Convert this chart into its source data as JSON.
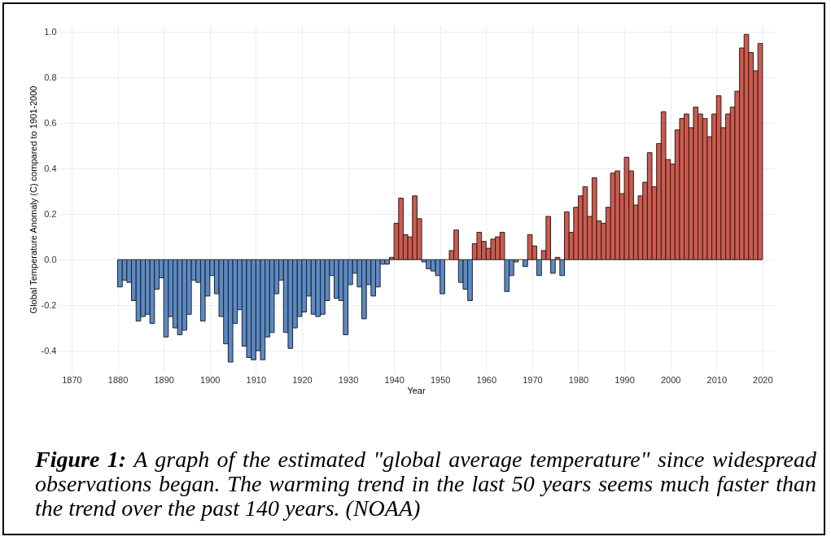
{
  "chart_data": {
    "type": "bar",
    "xlabel": "Year",
    "ylabel": "Global Temperature Anomaly (C) compared to 1901-2000",
    "x": [
      1880,
      1881,
      1882,
      1883,
      1884,
      1885,
      1886,
      1887,
      1888,
      1889,
      1890,
      1891,
      1892,
      1893,
      1894,
      1895,
      1896,
      1897,
      1898,
      1899,
      1900,
      1901,
      1902,
      1903,
      1904,
      1905,
      1906,
      1907,
      1908,
      1909,
      1910,
      1911,
      1912,
      1913,
      1914,
      1915,
      1916,
      1917,
      1918,
      1919,
      1920,
      1921,
      1922,
      1923,
      1924,
      1925,
      1926,
      1927,
      1928,
      1929,
      1930,
      1931,
      1932,
      1933,
      1934,
      1935,
      1936,
      1937,
      1938,
      1939,
      1940,
      1941,
      1942,
      1943,
      1944,
      1945,
      1946,
      1947,
      1948,
      1949,
      1950,
      1951,
      1952,
      1953,
      1954,
      1955,
      1956,
      1957,
      1958,
      1959,
      1960,
      1961,
      1962,
      1963,
      1964,
      1965,
      1966,
      1967,
      1968,
      1969,
      1970,
      1971,
      1972,
      1973,
      1974,
      1975,
      1976,
      1977,
      1978,
      1979,
      1980,
      1981,
      1982,
      1983,
      1984,
      1985,
      1986,
      1987,
      1988,
      1989,
      1990,
      1991,
      1992,
      1993,
      1994,
      1995,
      1996,
      1997,
      1998,
      1999,
      2000,
      2001,
      2002,
      2003,
      2004,
      2005,
      2006,
      2007,
      2008,
      2009,
      2010,
      2011,
      2012,
      2013,
      2014,
      2015,
      2016,
      2017,
      2018,
      2019
    ],
    "series": [
      {
        "color": "#d0594c",
        "values": [
          null,
          null,
          null,
          null,
          null,
          null,
          null,
          null,
          null,
          null,
          null,
          null,
          null,
          null,
          null,
          null,
          null,
          null,
          null,
          null,
          null,
          null,
          null,
          null,
          null,
          null,
          null,
          null,
          null,
          null,
          null,
          null,
          null,
          null,
          null,
          null,
          null,
          null,
          null,
          null,
          null,
          null,
          null,
          null,
          null,
          null,
          null,
          null,
          null,
          null,
          null,
          null,
          null,
          null,
          null,
          null,
          null,
          null,
          null,
          0.01,
          0.16,
          0.27,
          0.11,
          0.1,
          0.28,
          0.18,
          null,
          null,
          null,
          null,
          null,
          0.0,
          0.04,
          0.13,
          null,
          null,
          null,
          0.07,
          0.12,
          0.08,
          0.05,
          0.09,
          0.1,
          0.12,
          null,
          null,
          null,
          0.0,
          null,
          0.11,
          0.06,
          null,
          0.04,
          0.19,
          null,
          0.01,
          null,
          0.21,
          0.12,
          0.23,
          0.28,
          0.32,
          0.19,
          0.36,
          0.17,
          0.16,
          0.23,
          0.38,
          0.39,
          0.29,
          0.45,
          0.39,
          0.24,
          0.28,
          0.34,
          0.47,
          0.32,
          0.51,
          0.65,
          0.44,
          0.42,
          0.57,
          0.62,
          0.64,
          0.58,
          0.67,
          0.64,
          0.62,
          0.54,
          0.64,
          0.72,
          0.58,
          0.64,
          0.67,
          0.74,
          0.93,
          0.99,
          0.91,
          0.83,
          0.95
        ]
      },
      {
        "color": "#5a8ac6",
        "values": [
          -0.12,
          -0.09,
          -0.1,
          -0.18,
          -0.27,
          -0.25,
          -0.24,
          -0.28,
          -0.13,
          -0.08,
          -0.34,
          -0.25,
          -0.3,
          -0.33,
          -0.31,
          -0.24,
          -0.09,
          -0.1,
          -0.27,
          -0.16,
          -0.07,
          -0.15,
          -0.25,
          -0.37,
          -0.45,
          -0.28,
          -0.22,
          -0.38,
          -0.43,
          -0.44,
          -0.4,
          -0.44,
          -0.34,
          -0.32,
          -0.15,
          -0.09,
          -0.32,
          -0.39,
          -0.3,
          -0.25,
          -0.23,
          -0.16,
          -0.24,
          -0.25,
          -0.24,
          -0.18,
          -0.07,
          -0.17,
          -0.18,
          -0.33,
          -0.11,
          -0.06,
          -0.12,
          -0.26,
          -0.11,
          -0.16,
          -0.12,
          -0.02,
          -0.02,
          null,
          null,
          null,
          null,
          null,
          null,
          null,
          -0.01,
          -0.04,
          -0.05,
          -0.07,
          -0.15,
          null,
          null,
          null,
          -0.1,
          -0.13,
          -0.18,
          null,
          null,
          null,
          null,
          null,
          null,
          null,
          -0.14,
          -0.07,
          -0.01,
          null,
          -0.03,
          null,
          null,
          -0.07,
          null,
          null,
          -0.06,
          null,
          -0.07,
          null,
          null,
          null,
          null,
          null,
          null,
          null,
          null,
          null,
          null,
          null,
          null,
          null,
          null,
          null,
          null,
          null,
          null,
          null,
          null,
          null,
          null,
          null,
          null,
          null,
          null,
          null,
          null,
          null,
          null,
          null,
          null,
          null,
          null,
          null,
          null,
          null,
          null,
          null,
          null,
          null,
          null,
          null
        ]
      }
    ],
    "xlim": [
      1867,
      2022.5
    ],
    "xticks": [
      1870,
      1880,
      1890,
      1900,
      1910,
      1920,
      1930,
      1940,
      1950,
      1960,
      1970,
      1980,
      1990,
      2000,
      2010,
      2020
    ],
    "ylim": [
      -0.5,
      1.03
    ],
    "yticks": [
      -0.4,
      -0.2,
      {
        "value": 0,
        "label": "0.0"
      },
      0.2,
      0.4,
      0.6,
      0.8,
      {
        "value": 1,
        "label": "1.0"
      }
    ],
    "grid": true,
    "legend": false,
    "annotations": [
      "Figure 1:",
      "A graph of the estimated \"global average temperature\" since widespread observations began.  The warming trend in the last 50 years seems much faster than the trend over the past 140 years. (NOAA)"
    ]
  }
}
